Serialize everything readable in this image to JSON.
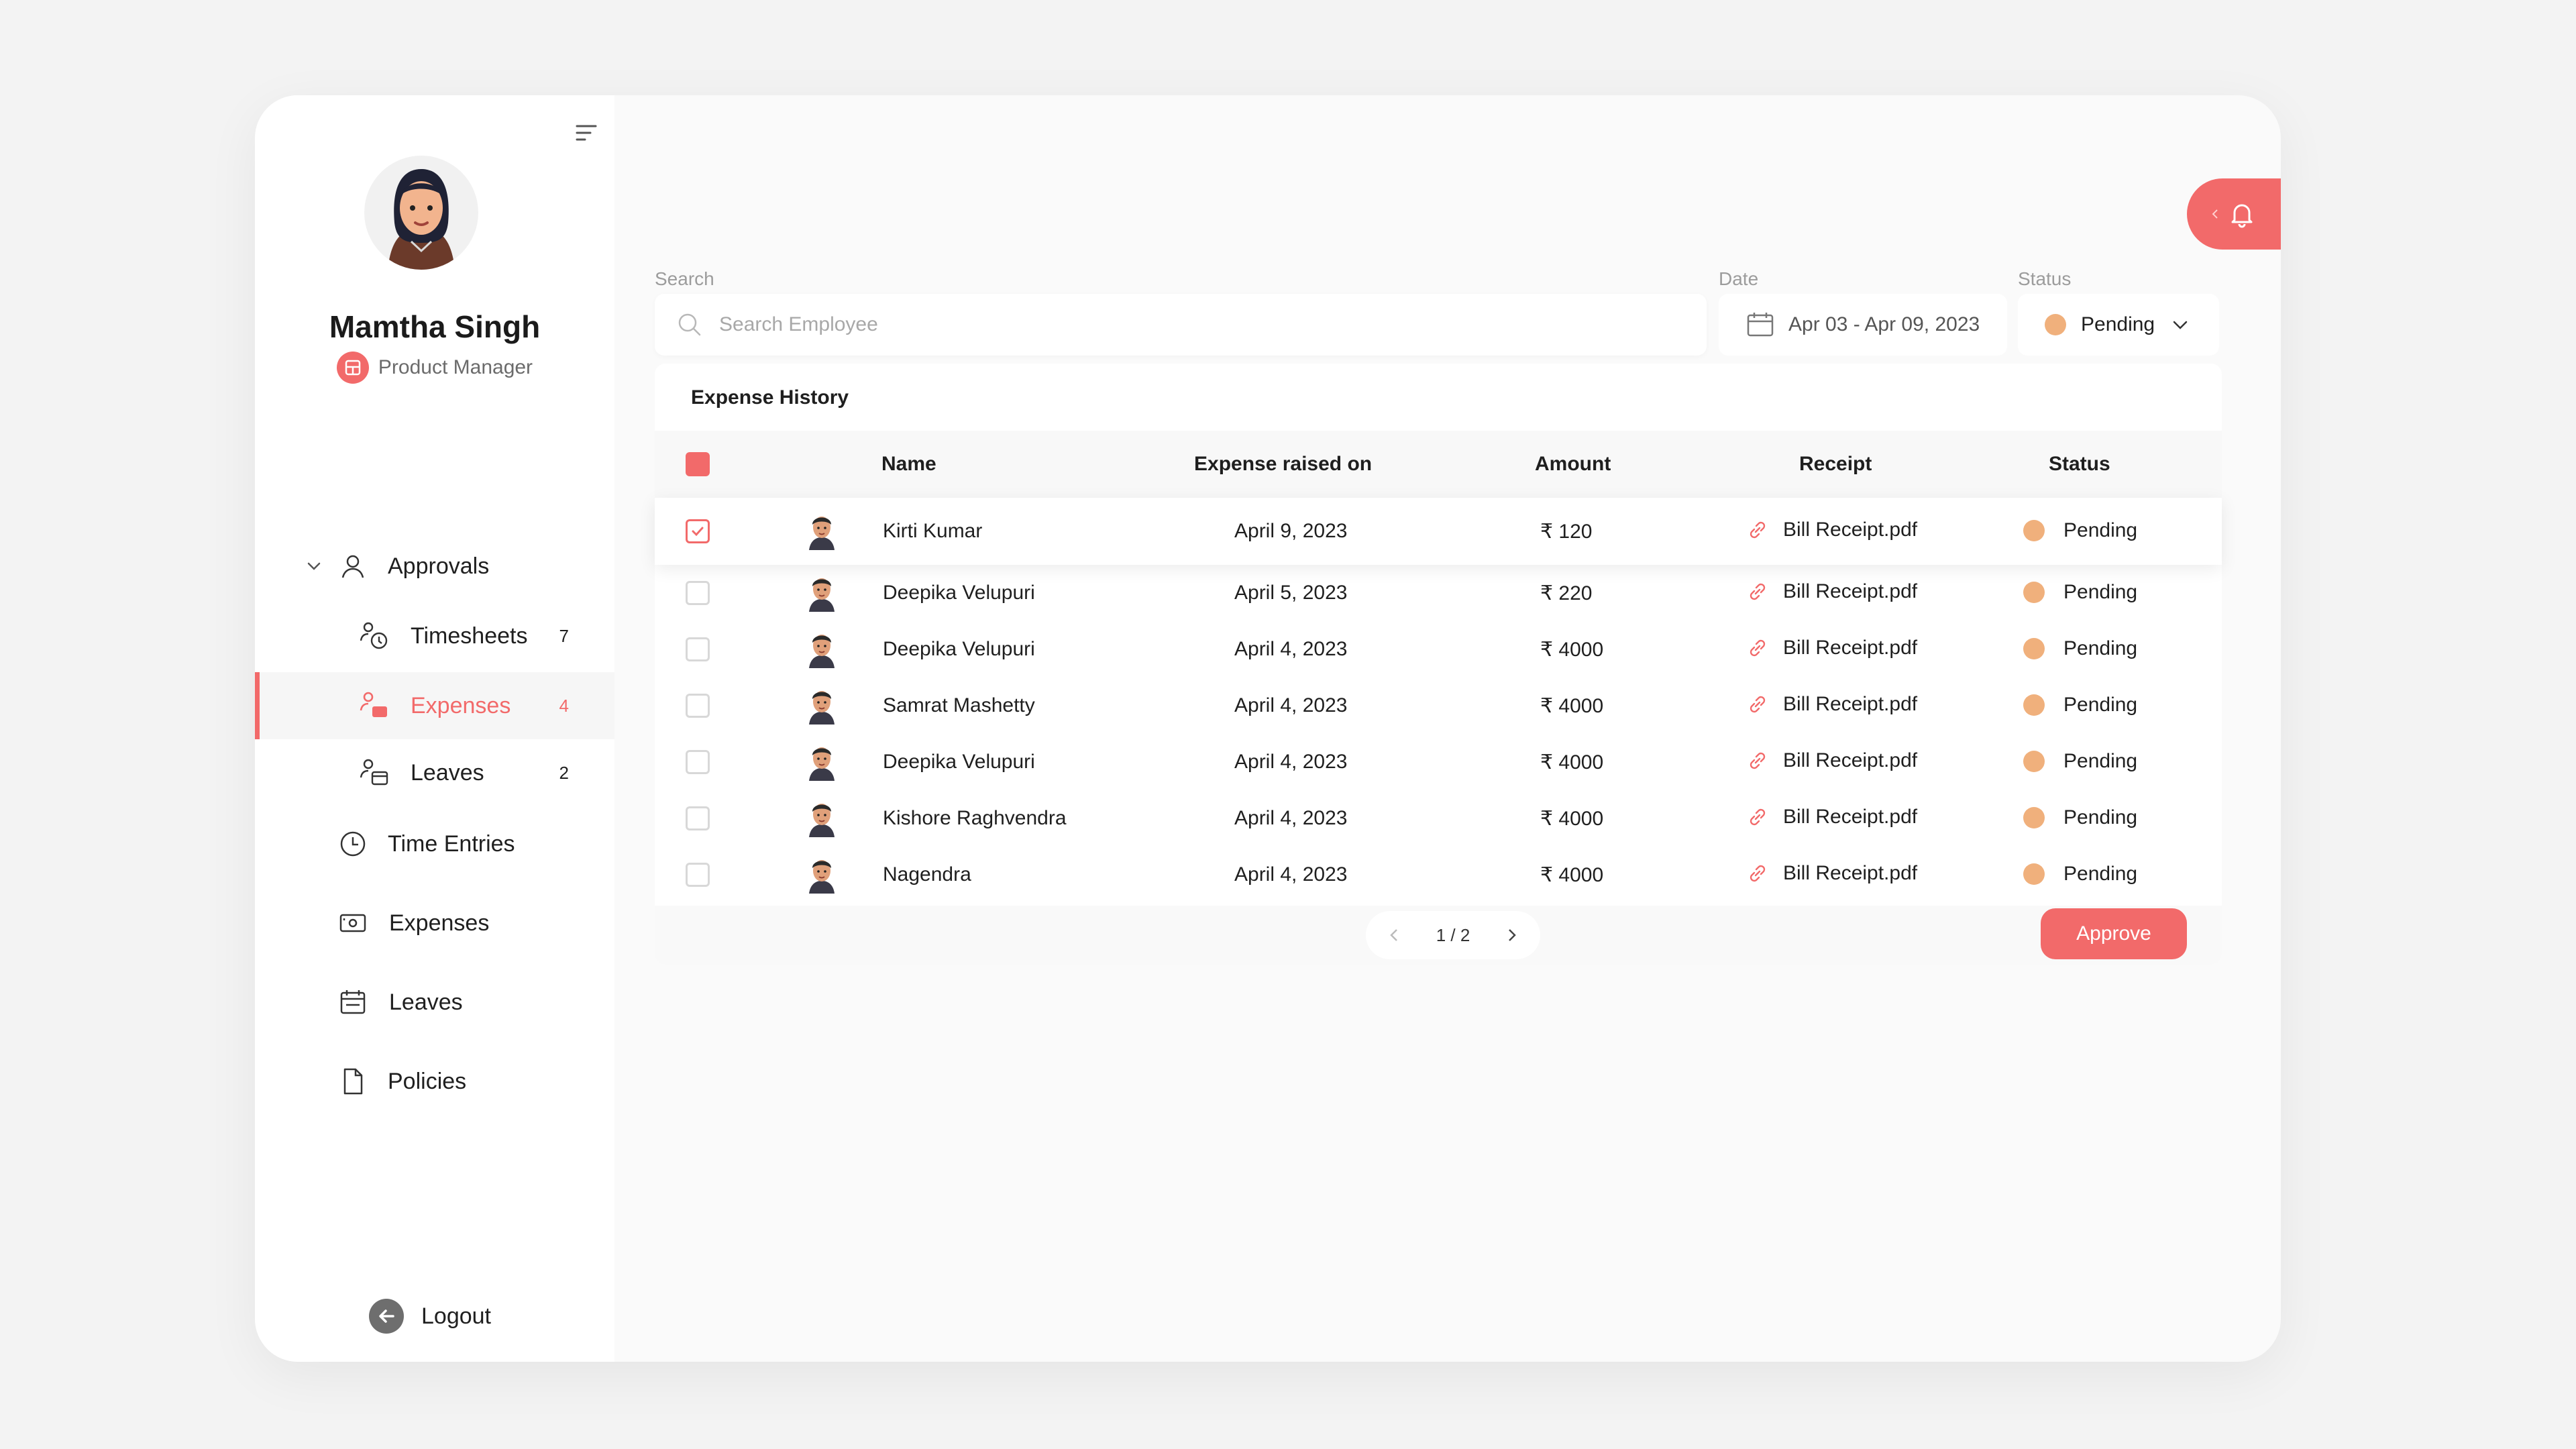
{
  "profile": {
    "name": "Mamtha Singh",
    "role": "Product Manager"
  },
  "nav": {
    "approvals": "Approvals",
    "timesheets": {
      "label": "Timesheets",
      "count": "7"
    },
    "expenses_sub": {
      "label": "Expenses",
      "count": "4"
    },
    "leaves_sub": {
      "label": "Leaves",
      "count": "2"
    },
    "time_entries": "Time Entries",
    "expenses": "Expenses",
    "leaves": "Leaves",
    "policies": "Policies",
    "logout": "Logout"
  },
  "filters": {
    "search_label": "Search",
    "search_placeholder": "Search Employee",
    "date_label": "Date",
    "date_value": "Apr 03 - Apr 09, 2023",
    "status_label": "Status",
    "status_value": "Pending"
  },
  "table": {
    "title": "Expense History",
    "columns": [
      "Name",
      "Expense raised on",
      "Amount",
      "Receipt",
      "Status"
    ],
    "rows": [
      {
        "name": "Kirti Kumar",
        "date": "April 9, 2023",
        "amount": "₹ 120",
        "receipt": "Bill Receipt.pdf",
        "status": "Pending",
        "checked": true
      },
      {
        "name": "Deepika Velupuri",
        "date": "April 5, 2023",
        "amount": "₹ 220",
        "receipt": "Bill Receipt.pdf",
        "status": "Pending",
        "checked": false
      },
      {
        "name": "Deepika Velupuri",
        "date": "April 4, 2023",
        "amount": "₹ 4000",
        "receipt": "Bill Receipt.pdf",
        "status": "Pending",
        "checked": false
      },
      {
        "name": "Samrat Mashetty",
        "date": "April 4, 2023",
        "amount": "₹ 4000",
        "receipt": "Bill Receipt.pdf",
        "status": "Pending",
        "checked": false
      },
      {
        "name": "Deepika Velupuri",
        "date": "April 4, 2023",
        "amount": "₹ 4000",
        "receipt": "Bill Receipt.pdf",
        "status": "Pending",
        "checked": false
      },
      {
        "name": "Kishore Raghvendra",
        "date": "April 4, 2023",
        "amount": "₹ 4000",
        "receipt": "Bill Receipt.pdf",
        "status": "Pending",
        "checked": false
      },
      {
        "name": "Nagendra",
        "date": "April 4, 2023",
        "amount": "₹ 4000",
        "receipt": "Bill Receipt.pdf",
        "status": "Pending",
        "checked": false
      }
    ]
  },
  "pagination": {
    "page": "1 / 2"
  },
  "actions": {
    "approve": "Approve"
  },
  "colors": {
    "accent": "#f26a6a",
    "pending": "#f0b07c"
  }
}
